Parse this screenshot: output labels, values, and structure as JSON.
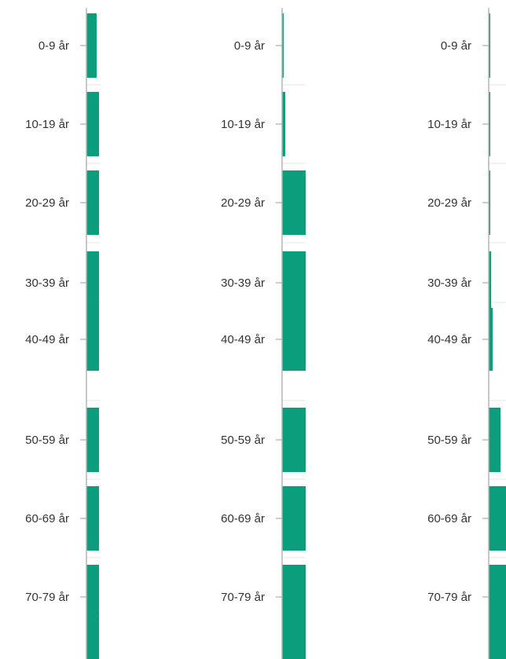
{
  "colors": {
    "bar": "#0a9e7c",
    "axis": "#b5b5b5",
    "grid": "#e6e6e6",
    "tick": "#9a9a9a",
    "text": "#333333"
  },
  "chart_data": [
    {
      "type": "bar",
      "orientation": "horizontal",
      "categories": [
        "0-9 år",
        "10-19 år",
        "20-29 år",
        "30-39 år",
        "40-49 år",
        "50-59 år",
        "60-69 år",
        "70-79 år",
        ""
      ],
      "values": [
        13,
        16,
        16,
        16,
        16,
        16,
        16,
        16,
        16
      ],
      "xlim": [
        0,
        100
      ],
      "clipped": true
    },
    {
      "type": "bar",
      "orientation": "horizontal",
      "categories": [
        "0-9 år",
        "10-19 år",
        "20-29 år",
        "30-39 år",
        "40-49 år",
        "50-59 år",
        "60-69 år",
        "70-79 år",
        ""
      ],
      "values": [
        2,
        4,
        30,
        30,
        30,
        30,
        30,
        30,
        30
      ],
      "xlim": [
        0,
        100
      ],
      "clipped": true
    },
    {
      "type": "bar",
      "orientation": "horizontal",
      "categories": [
        "0-9 år",
        "10-19 år",
        "20-29 år",
        "30-39 år",
        "40-49 år",
        "50-59 år",
        "60-69 år",
        "70-79 år",
        ""
      ],
      "values": [
        1,
        1,
        1,
        3,
        5,
        15,
        25,
        25,
        25
      ],
      "xlim": [
        0,
        100
      ],
      "clipped": true
    }
  ]
}
